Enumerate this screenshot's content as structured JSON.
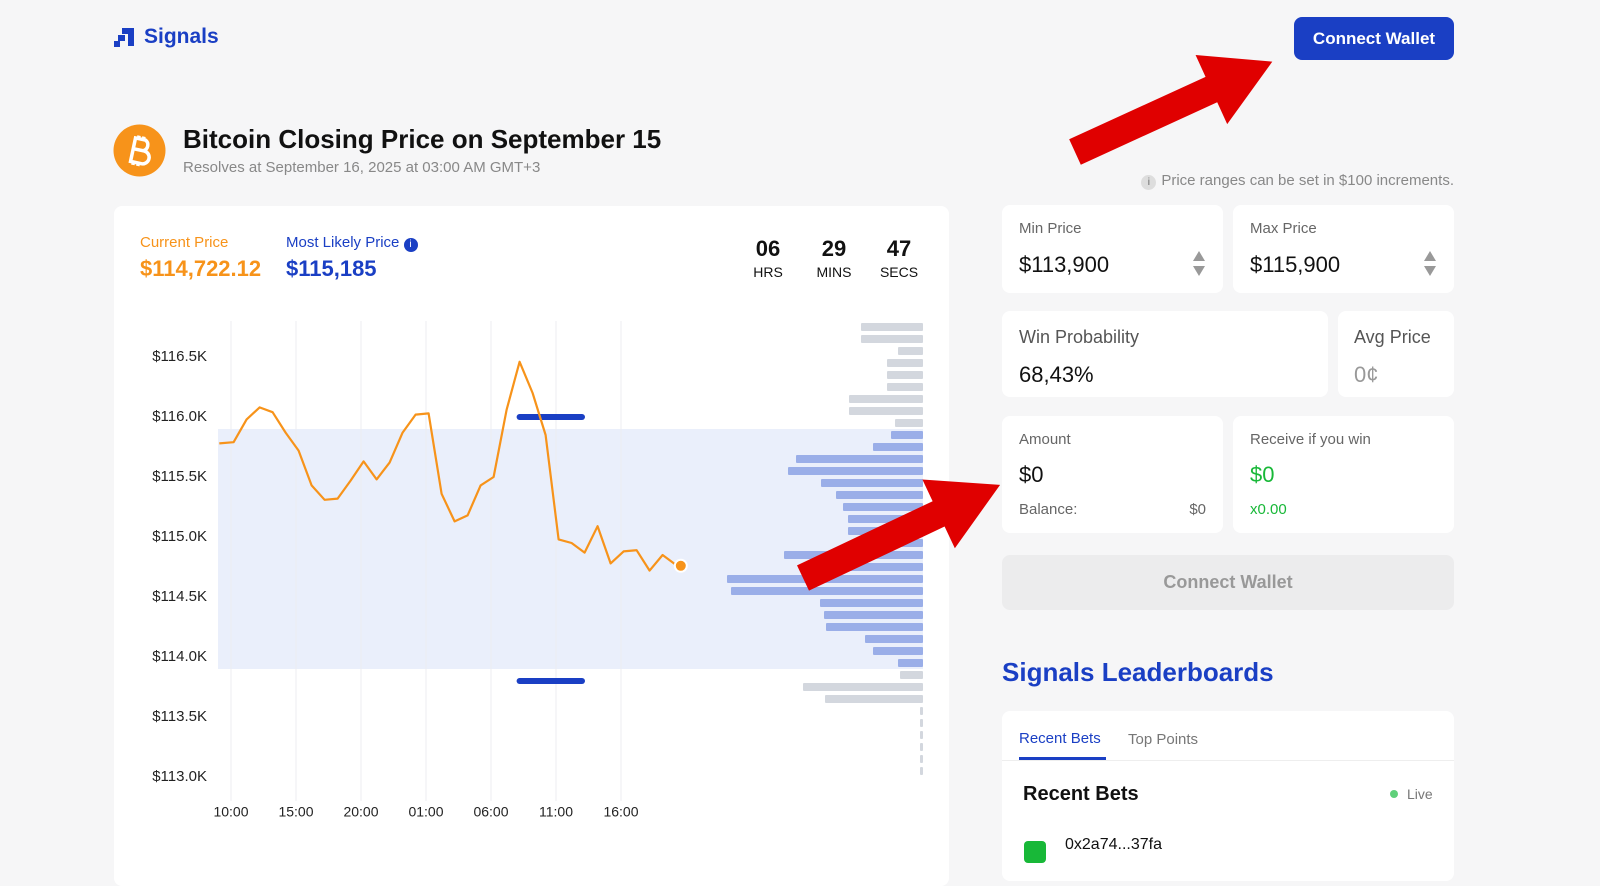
{
  "header": {
    "brand": "Signals",
    "button": "Connect Wallet"
  },
  "market": {
    "title": "Bitcoin Closing Price on September 15",
    "subtitle": "Resolves at September 16, 2025 at 03:00 AM GMT+3"
  },
  "stats": {
    "current_label": "Current Price",
    "current_value": "$114,722.12",
    "likely_label": "Most Likely Price",
    "likely_value": "$115,185",
    "countdown": [
      {
        "value": "06",
        "unit": "HRS"
      },
      {
        "value": "29",
        "unit": "MINS"
      },
      {
        "value": "47",
        "unit": "SECS"
      }
    ]
  },
  "chart_data": {
    "type": "line",
    "x": [
      -0.9,
      0.2,
      1.2,
      2.2,
      3.2,
      4.2,
      5.2,
      6.2,
      7.2,
      8.2,
      9.2,
      10.2,
      11.2,
      12.2,
      13.2,
      14.2,
      15.2,
      16.2,
      17.2,
      18.2,
      19.2,
      20.2,
      21.2,
      22.2,
      23.2,
      24.2,
      25.2,
      26.2,
      27.2,
      28.2,
      29.2,
      30.2,
      31.2,
      32.2,
      33.2,
      34.2,
      34.6
    ],
    "series": [
      {
        "color": "#f7931a",
        "values": [
          115780,
          115790,
          115980,
          116080,
          116040,
          115870,
          115720,
          115430,
          115310,
          115320,
          115470,
          115630,
          115480,
          115620,
          115870,
          116020,
          116030,
          115360,
          115130,
          115180,
          115430,
          115500,
          116060,
          116460,
          116200,
          115850,
          114980,
          114950,
          114870,
          115090,
          114780,
          114880,
          114890,
          114720,
          114850,
          114770,
          114760
        ]
      }
    ],
    "xlim": [
      -1,
      53
    ],
    "xticks": [
      {
        "value": 0,
        "label": "10:00"
      },
      {
        "value": 5,
        "label": "15:00"
      },
      {
        "value": 10,
        "label": "20:00"
      },
      {
        "value": 15,
        "label": "01:00"
      },
      {
        "value": 20,
        "label": "06:00"
      },
      {
        "value": 25,
        "label": "11:00"
      },
      {
        "value": 30,
        "label": "16:00"
      }
    ],
    "ylim": [
      112800,
      116800
    ],
    "yticks": [
      {
        "value": 116500,
        "label": "$116.5K"
      },
      {
        "value": 116000,
        "label": "$116.0K"
      },
      {
        "value": 115500,
        "label": "$115.5K"
      },
      {
        "value": 115000,
        "label": "$115.0K"
      },
      {
        "value": 114500,
        "label": "$114.5K"
      },
      {
        "value": 114000,
        "label": "$114.0K"
      },
      {
        "value": 113500,
        "label": "$113.5K"
      },
      {
        "value": 113000,
        "label": "$113.0K"
      }
    ],
    "band": [
      113900,
      115900
    ],
    "band_color": "#eaeffb",
    "markers": {
      "values": [
        116000,
        113800
      ],
      "x": [
        22.2,
        27
      ],
      "color": "#1a3fc4"
    },
    "distribution": {
      "levels": [
        116750,
        116650,
        116550,
        116450,
        116350,
        116250,
        116150,
        116050,
        115950,
        115850,
        115750,
        115650,
        115550,
        115450,
        115350,
        115250,
        115150,
        115050,
        114950,
        114850,
        114750,
        114650,
        114550,
        114450,
        114350,
        114250,
        114150,
        114050,
        113950,
        113850,
        113750,
        113650,
        113550,
        113450,
        113350,
        113250,
        113150,
        113050
      ],
      "values": [
        62,
        62,
        25,
        36,
        36,
        36,
        74,
        74,
        28,
        32,
        50,
        127,
        135,
        102,
        87,
        80,
        75,
        75,
        70,
        139,
        110,
        196,
        192,
        103,
        99,
        97,
        58,
        50,
        25,
        23,
        120,
        98,
        3,
        3,
        3,
        3,
        3,
        3
      ],
      "xlim": [
        0,
        200
      ],
      "in_color": "#9aaee8",
      "out_color": "#d3d7de"
    },
    "grid": true
  },
  "note": "Price ranges can be set in $100 increments.",
  "form": {
    "min_label": "Min Price",
    "min_value": "$113,900",
    "max_label": "Max Price",
    "max_value": "$115,900",
    "win_label": "Win Probability",
    "win_value": "68,43%",
    "avg_label": "Avg Price",
    "avg_value": "0¢",
    "amount_label": "Amount",
    "amount_value": "$0",
    "balance_label": "Balance:",
    "balance_value": "$0",
    "receive_label": "Receive if you win",
    "receive_value": "$0",
    "multiplier": "x0.00",
    "button": "Connect Wallet"
  },
  "leaderboard": {
    "title": "Signals Leaderboards",
    "tabs": [
      "Recent Bets",
      "Top Points"
    ],
    "heading": "Recent Bets",
    "status": "Live",
    "first_row": "0x2a74...37fa"
  }
}
